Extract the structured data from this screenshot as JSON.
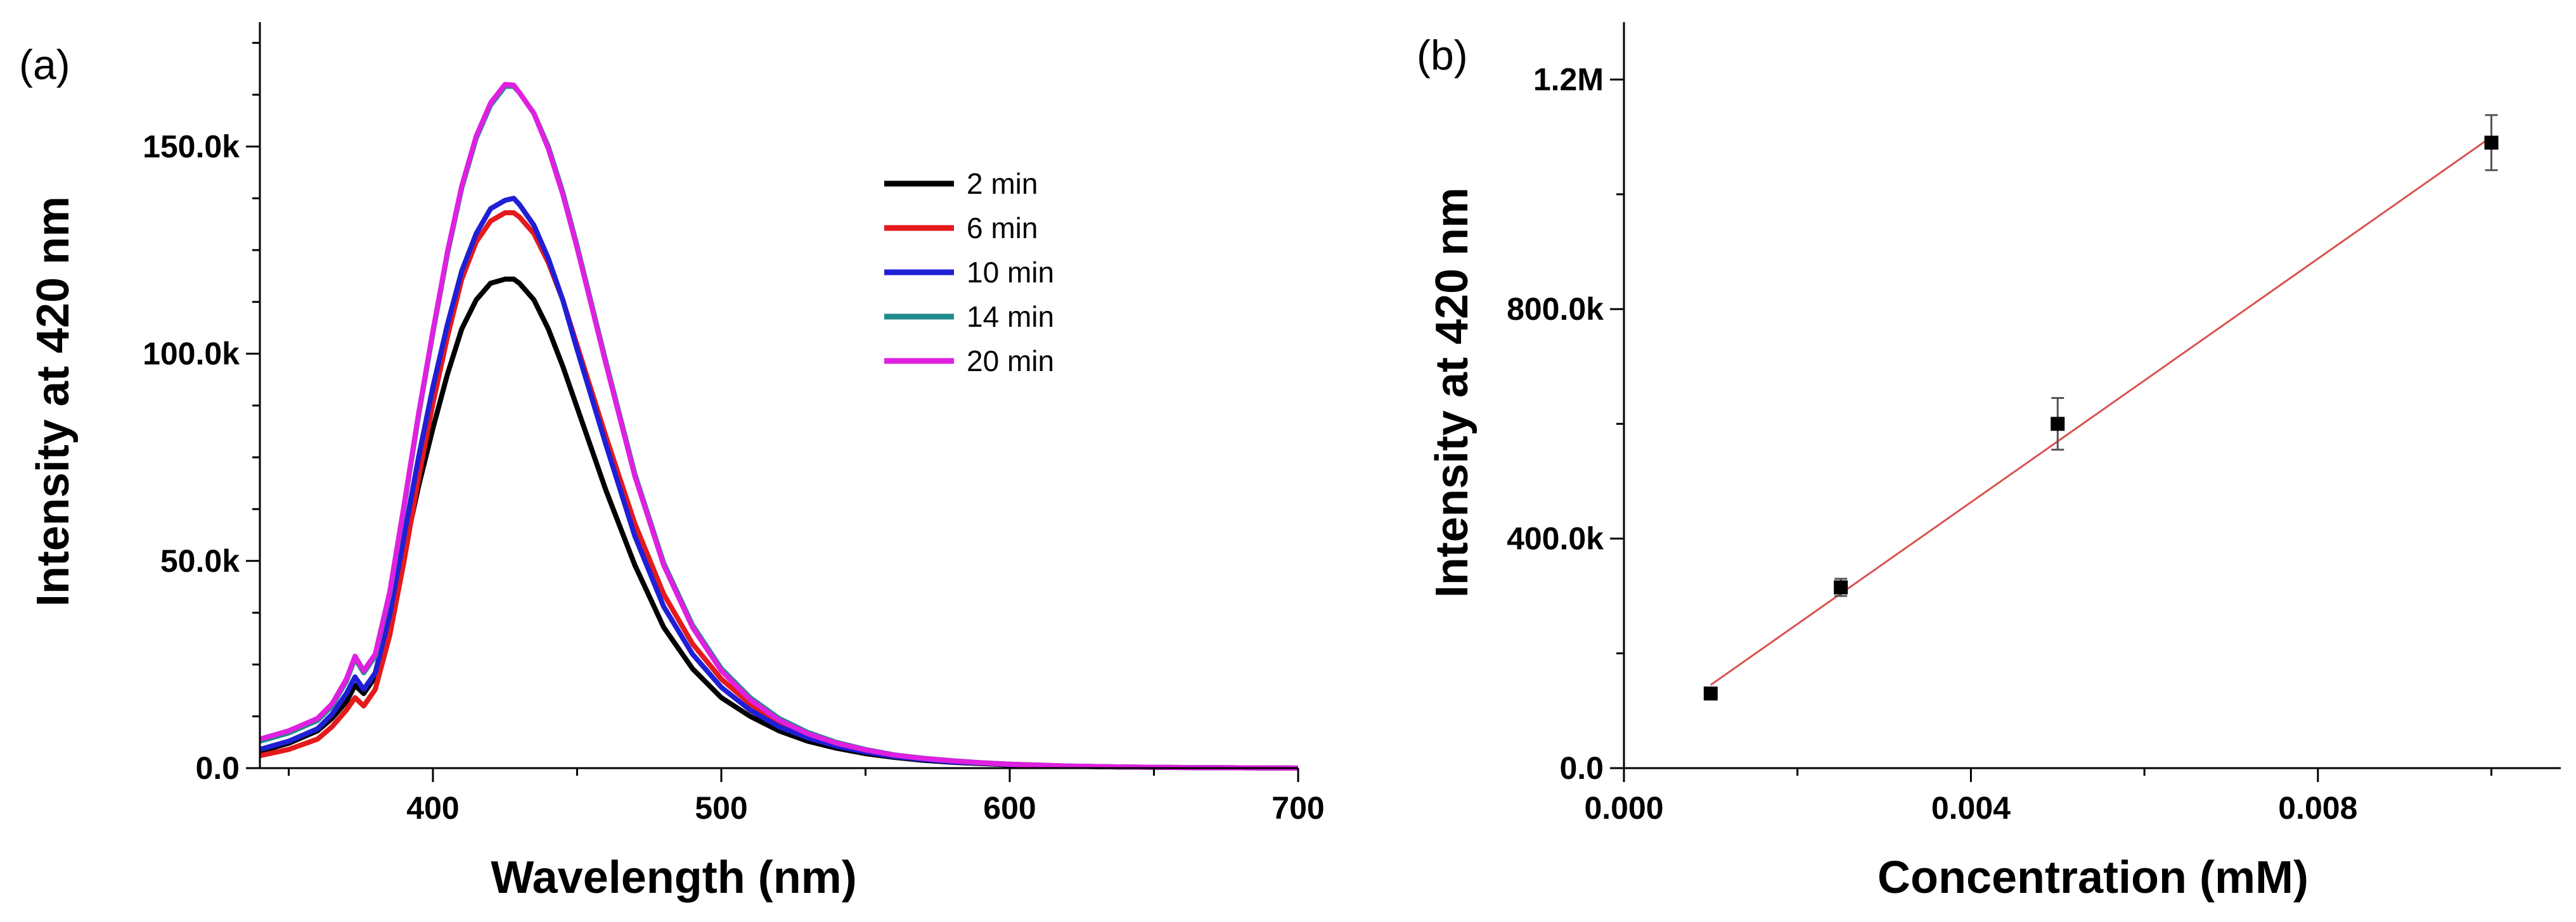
{
  "chart_data": [
    {
      "type": "line",
      "panel_label": "(a)",
      "title": "",
      "xlabel": "Wavelength (nm)",
      "ylabel": "Intensity at 420 nm",
      "xlim": [
        340,
        700
      ],
      "ylim": [
        0,
        180000
      ],
      "x_ticks": [
        400,
        500,
        600,
        700
      ],
      "x_tick_labels": [
        "400",
        "500",
        "600",
        "700"
      ],
      "y_ticks": [
        0,
        50000,
        100000,
        150000
      ],
      "y_tick_labels": [
        "0.0",
        "50.0k",
        "100.0k",
        "150.0k"
      ],
      "grid": false,
      "legend_position": "top-right",
      "x": [
        340,
        350,
        360,
        365,
        370,
        373,
        376,
        380,
        385,
        390,
        395,
        400,
        405,
        410,
        415,
        420,
        425,
        428,
        430,
        435,
        440,
        445,
        450,
        460,
        470,
        480,
        490,
        500,
        510,
        520,
        530,
        540,
        550,
        560,
        570,
        580,
        590,
        600,
        620,
        640,
        660,
        680,
        700
      ],
      "series": [
        {
          "name": "2 min",
          "color": "#000000",
          "values": [
            4000,
            6000,
            9000,
            12000,
            16000,
            20000,
            18000,
            22000,
            35000,
            52000,
            68000,
            82000,
            95000,
            106000,
            113000,
            117000,
            118000,
            118000,
            117000,
            113000,
            106000,
            97000,
            87000,
            67000,
            49000,
            34000,
            24000,
            17000,
            12500,
            9000,
            6500,
            4800,
            3500,
            2600,
            1900,
            1400,
            1100,
            800,
            450,
            250,
            150,
            80,
            0
          ]
        },
        {
          "name": "6 min",
          "color": "#e41a1c",
          "values": [
            3000,
            4500,
            7000,
            10000,
            14000,
            17000,
            15000,
            19000,
            32000,
            50000,
            70000,
            88000,
            104000,
            118000,
            127000,
            132000,
            134000,
            134000,
            133000,
            129000,
            122000,
            113000,
            102000,
            80000,
            59000,
            42000,
            30000,
            21500,
            15500,
            11000,
            8000,
            5900,
            4300,
            3100,
            2300,
            1700,
            1300,
            950,
            500,
            280,
            150,
            80,
            0
          ]
        },
        {
          "name": "10 min",
          "color": "#1f1fd6",
          "values": [
            4500,
            6500,
            9500,
            13000,
            18000,
            22000,
            19000,
            23000,
            37000,
            56000,
            75000,
            92000,
            107000,
            120000,
            129000,
            135000,
            137000,
            137500,
            136000,
            131000,
            123000,
            113000,
            101000,
            78000,
            56000,
            39000,
            27500,
            19500,
            14000,
            10000,
            7300,
            5300,
            3900,
            2800,
            2100,
            1500,
            1200,
            850,
            470,
            260,
            140,
            70,
            0
          ]
        },
        {
          "name": "14 min",
          "color": "#1f8a8a",
          "values": [
            6500,
            8500,
            11500,
            15000,
            21000,
            26500,
            23000,
            27000,
            42000,
            63000,
            85000,
            105000,
            124000,
            140000,
            152000,
            160000,
            164500,
            164500,
            163000,
            158000,
            150000,
            139000,
            126000,
            98000,
            71000,
            49500,
            34500,
            24000,
            17000,
            12000,
            8600,
            6200,
            4500,
            3200,
            2400,
            1800,
            1300,
            950,
            520,
            280,
            150,
            70,
            0
          ]
        },
        {
          "name": "20 min",
          "color": "#e020e0",
          "values": [
            7000,
            9000,
            12000,
            15500,
            21500,
            27000,
            23500,
            27500,
            42500,
            63500,
            85500,
            105500,
            124500,
            140500,
            152500,
            160500,
            165000,
            164800,
            163000,
            158000,
            149500,
            138500,
            125500,
            97500,
            70500,
            49000,
            34000,
            23500,
            16500,
            11600,
            8300,
            6000,
            4400,
            3150,
            2350,
            1750,
            1300,
            920,
            500,
            270,
            140,
            70,
            0
          ]
        }
      ]
    },
    {
      "type": "scatter",
      "panel_label": "(b)",
      "title": "",
      "xlabel": "Concentration (mM)",
      "ylabel": "Intensity at 420 nm",
      "xlim": [
        0.0,
        0.0108
      ],
      "ylim": [
        0,
        1300000
      ],
      "x_ticks": [
        0.0,
        0.004,
        0.008
      ],
      "x_tick_labels": [
        "0.000",
        "0.004",
        "0.008"
      ],
      "y_ticks": [
        0,
        400000,
        800000,
        1200000
      ],
      "y_tick_labels": [
        "0.0",
        "400.0k",
        "800.0k",
        "1.2M"
      ],
      "grid": false,
      "points": [
        {
          "x": 0.001,
          "y": 130000,
          "err": 8000
        },
        {
          "x": 0.0025,
          "y": 315000,
          "err": 15000
        },
        {
          "x": 0.005,
          "y": 600000,
          "err": 45000
        },
        {
          "x": 0.01,
          "y": 1090000,
          "err": 48000
        }
      ],
      "fit_line": {
        "x": [
          0.001,
          0.01
        ],
        "y": [
          145000,
          1100000
        ],
        "color": "#d9534f"
      },
      "marker_color": "#000000"
    }
  ]
}
